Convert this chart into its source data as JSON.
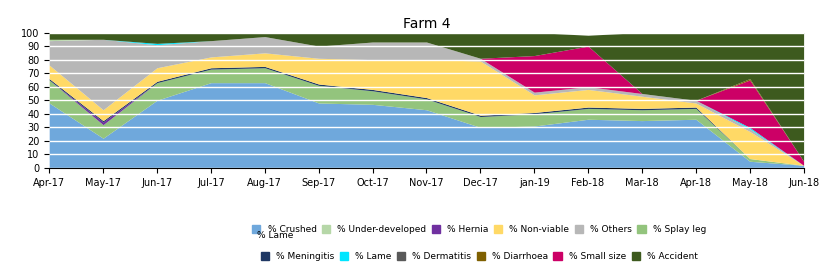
{
  "title": "Farm 4",
  "x_labels": [
    "Apr-17",
    "May-17",
    "Jun-17",
    "Jul-17",
    "Aug-17",
    "Sep-17",
    "Oct-17",
    "Nov-17",
    "Dec-17",
    "jan-19",
    "Feb-18",
    "Mar-18",
    "Apr-18",
    "May-18",
    "Jun-18"
  ],
  "stack_order": [
    "% Crushed",
    "% Splay leg",
    "% Hernia",
    "% Meningitis",
    "% Non-viable",
    "% Others",
    "% Lame",
    "% Small size",
    "% Under-developed",
    "% Dermatitis",
    "% Diarrhoea",
    "% Accident"
  ],
  "series": {
    "% Crushed": [
      48,
      22,
      50,
      63,
      63,
      48,
      47,
      43,
      30,
      31,
      36,
      35,
      36,
      5,
      2
    ],
    "% Splay leg": [
      17,
      10,
      13,
      10,
      11,
      13,
      10,
      8,
      8,
      9,
      8,
      8,
      8,
      2,
      0
    ],
    "% Hernia": [
      0,
      2,
      0,
      0,
      0,
      0,
      0,
      0,
      0,
      0,
      0,
      0,
      0,
      0,
      0
    ],
    "% Meningitis": [
      1,
      1,
      1,
      1,
      1,
      1,
      1,
      1,
      1,
      1,
      1,
      1,
      1,
      0,
      0
    ],
    "% Non-viable": [
      10,
      8,
      10,
      8,
      10,
      19,
      22,
      28,
      40,
      13,
      13,
      9,
      3,
      20,
      0
    ],
    "% Others": [
      18,
      52,
      17,
      12,
      12,
      9,
      13,
      13,
      2,
      2,
      2,
      2,
      2,
      2,
      0
    ],
    "% Lame": [
      0,
      0,
      1,
      0,
      0,
      0,
      0,
      0,
      0,
      0,
      0,
      0,
      0,
      1,
      0
    ],
    "% Small size": [
      0,
      0,
      0,
      0,
      0,
      0,
      0,
      0,
      0,
      27,
      30,
      0,
      0,
      35,
      3
    ],
    "% Under-developed": [
      1,
      0,
      0,
      0,
      0,
      0,
      0,
      0,
      0,
      0,
      0,
      0,
      0,
      0,
      0
    ],
    "% Dermatitis": [
      0,
      0,
      0,
      0,
      0,
      0,
      0,
      0,
      0,
      0,
      0,
      0,
      0,
      0,
      0
    ],
    "% Diarrhoea": [
      0,
      0,
      0,
      0,
      0,
      0,
      0,
      0,
      0,
      0,
      0,
      0,
      0,
      1,
      0
    ],
    "% Accident": [
      5,
      5,
      8,
      6,
      3,
      10,
      7,
      7,
      19,
      17,
      8,
      45,
      50,
      34,
      95
    ]
  },
  "colors": {
    "% Crushed": "#6fa8dc",
    "% Splay leg": "#93c47d",
    "% Non-viable": "#ffd966",
    "% Others": "#b7b7b7",
    "% Under-developed": "#b6d7a8",
    "% Lame": "#00e5ff",
    "% Hernia": "#7030a0",
    "% Meningitis": "#1f3864",
    "% Dermatitis": "#595959",
    "% Diarrhoea": "#7f6000",
    "% Small size": "#cc0066",
    "% Accident": "#3d5a1e"
  },
  "legend_row1": [
    "% Crushed",
    "% Under-developed",
    "% Hernia",
    "% Non-viable",
    "% Others",
    "% Splay leg"
  ],
  "legend_row2": [
    "% Meningitis",
    "% Lame",
    "% Dermatitis",
    "% Diarrhoea",
    "% Small size",
    "% Accident"
  ],
  "ylim": [
    0,
    100
  ],
  "figsize": [
    8.2,
    2.71
  ],
  "dpi": 100
}
